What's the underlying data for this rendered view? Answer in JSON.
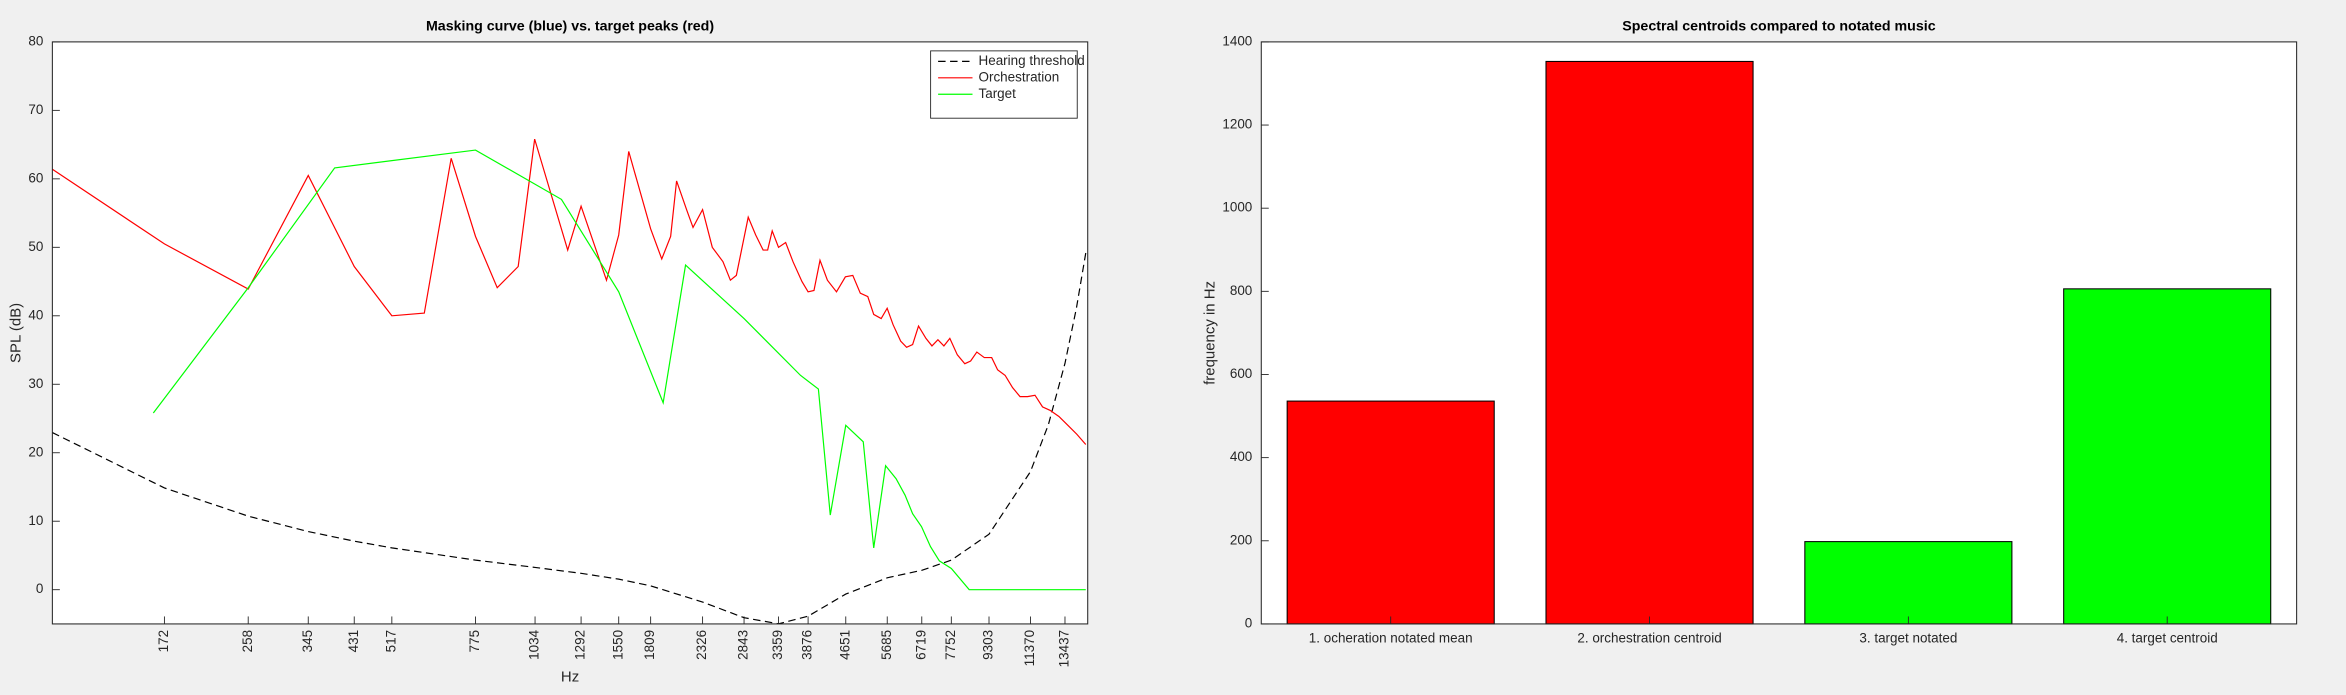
{
  "chart_data": [
    {
      "type": "line",
      "title": "Masking curve (blue) vs. target peaks (red)",
      "xlabel": "Hz",
      "ylabel": "SPL (dB)",
      "xscale": "log",
      "xlim": [
        100,
        15000
      ],
      "ylim": [
        -5,
        80
      ],
      "xticks": [
        172,
        258,
        345,
        431,
        517,
        775,
        1034,
        1292,
        1550,
        1809,
        2326,
        2843,
        3359,
        3876,
        4651,
        5685,
        6719,
        7752,
        9303,
        11370,
        13437
      ],
      "yticks": [
        0,
        10,
        20,
        30,
        40,
        50,
        60,
        70,
        80
      ],
      "legend": "northeast",
      "series": [
        {
          "name": "Hearing threshold",
          "color": "#000000",
          "linestyle": "dashed",
          "x": [
            100,
            172,
            258,
            345,
            431,
            517,
            775,
            1034,
            1292,
            1550,
            1809,
            2326,
            2843,
            3359,
            3876,
            4651,
            5685,
            6719,
            7752,
            9303,
            11370,
            12400,
            13437,
            14200,
            14860
          ],
          "values": [
            22.95,
            14.86,
            10.74,
            8.49,
            7.09,
            6.11,
            4.32,
            3.25,
            2.39,
            1.54,
            0.56,
            -1.8,
            -4.09,
            -4.98,
            -3.87,
            -0.64,
            1.74,
            2.83,
            4.32,
            8.1,
            17.24,
            24.1,
            33.06,
            41.1,
            49.18
          ]
        },
        {
          "name": "Orchestration",
          "color": "#ff0000",
          "linestyle": "solid",
          "x": [
            100,
            172,
            258,
            345,
            431,
            517,
            605,
            689,
            775,
            861,
            953,
            1032,
            1211,
            1292,
            1461,
            1550,
            1627,
            1809,
            1909,
            1993,
            2051,
            2158,
            2221,
            2326,
            2438,
            2567,
            2661,
            2739,
            2901,
            3008,
            3118,
            3187,
            3258,
            3359,
            3477,
            3603,
            3763,
            3876,
            3988,
            4106,
            4256,
            4447,
            4643,
            4812,
            4990,
            5174,
            5325,
            5521,
            5683,
            5848,
            6067,
            6243,
            6428,
            6614,
            6857,
            7059,
            7265,
            7478,
            7697,
            7980,
            8275,
            8511,
            8770,
            9092,
            9425,
            9700,
            10058,
            10427,
            10812,
            11210,
            11622,
            12053,
            12496,
            13048,
            13626,
            14230,
            14860
          ],
          "values": [
            61.4,
            50.5,
            43.9,
            60.5,
            47.2,
            40,
            40.4,
            63,
            51.6,
            44.1,
            47.2,
            65.8,
            49.6,
            56,
            45.2,
            51.8,
            64,
            52.7,
            48.3,
            51.6,
            59.7,
            55.3,
            52.9,
            55.5,
            50,
            47.9,
            45.2,
            45.9,
            54.4,
            51.8,
            49.6,
            49.6,
            52.4,
            50,
            50.7,
            47.9,
            45,
            43.5,
            43.7,
            48.1,
            45.2,
            43.5,
            45.7,
            45.9,
            43.3,
            42.8,
            40.2,
            39.6,
            41.1,
            38.7,
            36.3,
            35.4,
            35.8,
            38.5,
            36.7,
            35.6,
            36.5,
            35.6,
            36.7,
            34.3,
            33,
            33.4,
            34.7,
            33.9,
            33.9,
            32.1,
            31.3,
            29.5,
            28.2,
            28.2,
            28.4,
            26.7,
            26.2,
            25.3,
            24,
            22.7,
            21.2
          ]
        },
        {
          "name": "Target",
          "color": "#00ff00",
          "linestyle": "solid",
          "x": [
            163,
            258,
            392,
            775,
            1175,
            1550,
            1922,
            2142,
            2843,
            3736,
            4074,
            4315,
            4651,
            5062,
            5325,
            5640,
            5934,
            6197,
            6428,
            6711,
            7008,
            7317,
            7753,
            8453,
            14860
          ],
          "values": [
            25.8,
            44.1,
            61.6,
            64.2,
            57,
            43.5,
            27.3,
            47.4,
            39.6,
            31.3,
            29.3,
            10.9,
            24,
            21.6,
            6.1,
            18.1,
            16.2,
            13.8,
            11.1,
            9.2,
            6.3,
            4.2,
            3.1,
            0,
            0
          ]
        }
      ]
    },
    {
      "type": "bar",
      "title": "Spectral centroids compared to notated music",
      "ylabel": "frequency in Hz",
      "categories": [
        "1. ocheration notated mean",
        "2. orchestration centroid",
        "3. target notated",
        "4. target centroid"
      ],
      "values": [
        536,
        1353,
        198,
        806
      ],
      "colors": [
        "#ff0000",
        "#ff0000",
        "#00ff00",
        "#00ff00"
      ],
      "ylim": [
        0,
        1400
      ],
      "yticks": [
        0,
        200,
        400,
        600,
        800,
        1000,
        1200,
        1400
      ]
    }
  ]
}
